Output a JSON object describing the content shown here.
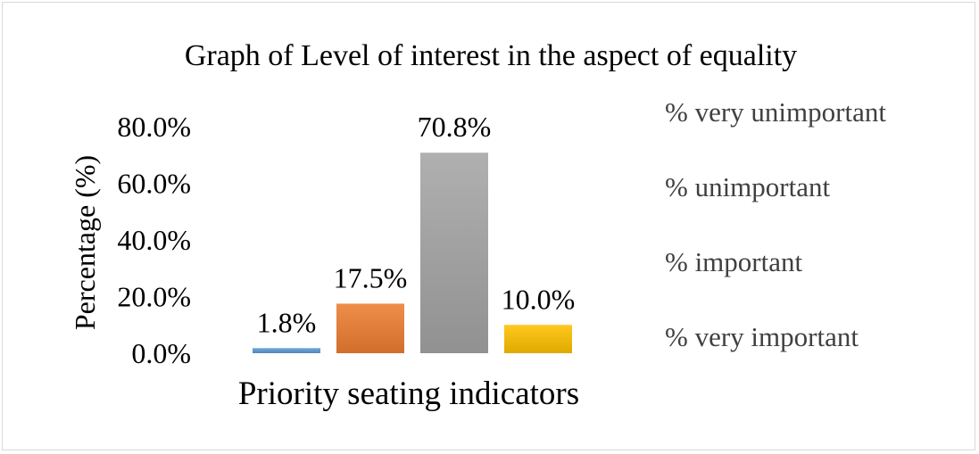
{
  "chart_data": {
    "type": "bar",
    "title": "Graph of Level of interest in the aspect of equality",
    "xlabel": "Priority seating indicators",
    "ylabel": "Percentage (%)",
    "ylim": [
      0,
      80
    ],
    "y_ticks": [
      "0.0%",
      "20.0%",
      "40.0%",
      "60.0%",
      "80.0%"
    ],
    "grid": false,
    "legend_position": "right",
    "series": [
      {
        "name": "% very unimportant",
        "value": 1.8,
        "label": "1.8%",
        "color": "#5b9bd5"
      },
      {
        "name": "% unimportant",
        "value": 17.5,
        "label": "17.5%",
        "color": "#ed7d31"
      },
      {
        "name": "% important",
        "value": 70.8,
        "label": "70.8%",
        "color": "#a5a5a5"
      },
      {
        "name": "% very important",
        "value": 10.0,
        "label": "10.0%",
        "color": "#ffc000"
      }
    ]
  }
}
